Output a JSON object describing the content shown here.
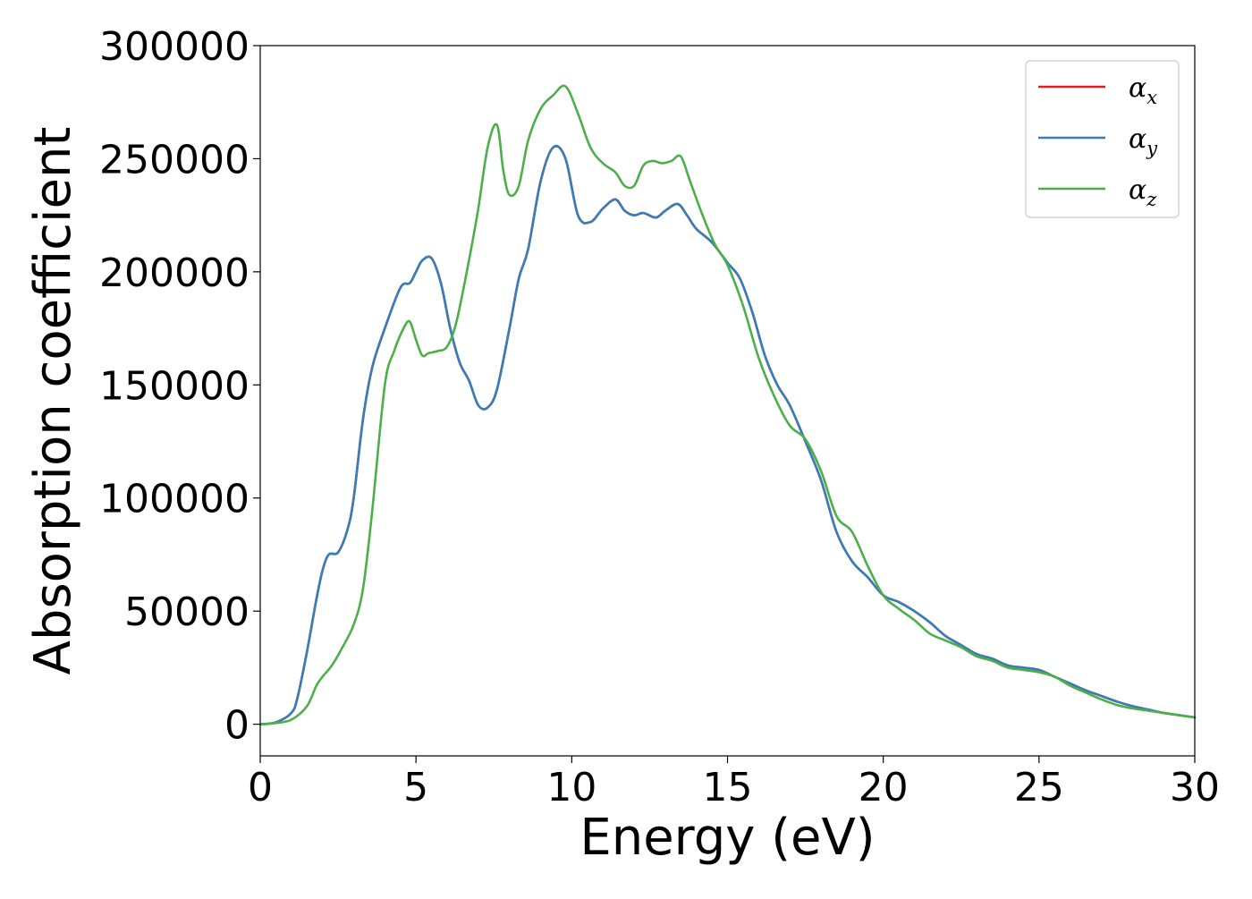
{
  "chart_data": {
    "type": "line",
    "title": "",
    "xlabel": "Energy (eV)",
    "ylabel": "Absorption coefficient",
    "xlim": [
      0,
      30
    ],
    "ylim": [
      -14000,
      300000
    ],
    "xticks": [
      0,
      5,
      10,
      15,
      20,
      25,
      30
    ],
    "yticks": [
      0,
      50000,
      100000,
      150000,
      200000,
      250000,
      300000
    ],
    "grid": false,
    "legend_position": "top-right",
    "series": [
      {
        "name": "x",
        "symbol": "α",
        "color": "#e41a1c",
        "x": [
          0,
          0.5,
          1.0,
          1.2,
          1.5,
          1.8,
          2.0,
          2.2,
          2.5,
          2.8,
          3.0,
          3.3,
          3.6,
          4.0,
          4.5,
          4.8,
          5.0,
          5.2,
          5.5,
          5.8,
          6.1,
          6.4,
          6.7,
          7.0,
          7.3,
          7.6,
          8.0,
          8.3,
          8.6,
          9.0,
          9.4,
          9.8,
          10.2,
          10.6,
          11.0,
          11.4,
          11.7,
          12.0,
          12.3,
          12.7,
          13.0,
          13.4,
          13.7,
          14.0,
          14.5,
          15.0,
          15.4,
          15.8,
          16.2,
          16.6,
          17.0,
          17.5,
          18.0,
          18.5,
          19.0,
          19.5,
          20.0,
          20.5,
          21.0,
          21.5,
          22.0,
          22.5,
          23.0,
          23.5,
          24.0,
          24.5,
          25.0,
          25.5,
          26.0,
          26.5,
          27.0,
          27.5,
          28.0,
          28.5,
          29.0,
          29.5,
          30.0
        ],
        "values": [
          0,
          800,
          5000,
          12000,
          32000,
          55000,
          68000,
          75000,
          76000,
          86000,
          100000,
          135000,
          158000,
          175000,
          193000,
          195000,
          200000,
          205000,
          206000,
          195000,
          175000,
          160000,
          152000,
          141000,
          140000,
          148000,
          175000,
          197000,
          210000,
          240000,
          255000,
          250000,
          225000,
          222000,
          228000,
          232000,
          227000,
          225000,
          226000,
          224000,
          227000,
          230000,
          225000,
          219000,
          213000,
          204000,
          197000,
          182000,
          163000,
          150000,
          141000,
          125000,
          108000,
          85000,
          72000,
          65000,
          57000,
          54000,
          50000,
          45000,
          39000,
          35000,
          31000,
          29000,
          26000,
          25000,
          24000,
          21000,
          18000,
          15000,
          12500,
          10000,
          8000,
          6500,
          5000,
          4000,
          3000
        ]
      },
      {
        "name": "y",
        "symbol": "α",
        "color": "#377eb8",
        "x": [
          0,
          0.5,
          1.0,
          1.2,
          1.5,
          1.8,
          2.0,
          2.2,
          2.5,
          2.8,
          3.0,
          3.3,
          3.6,
          4.0,
          4.5,
          4.8,
          5.0,
          5.2,
          5.5,
          5.8,
          6.1,
          6.4,
          6.7,
          7.0,
          7.3,
          7.6,
          8.0,
          8.3,
          8.6,
          9.0,
          9.4,
          9.8,
          10.2,
          10.6,
          11.0,
          11.4,
          11.7,
          12.0,
          12.3,
          12.7,
          13.0,
          13.4,
          13.7,
          14.0,
          14.5,
          15.0,
          15.4,
          15.8,
          16.2,
          16.6,
          17.0,
          17.5,
          18.0,
          18.5,
          19.0,
          19.5,
          20.0,
          20.5,
          21.0,
          21.5,
          22.0,
          22.5,
          23.0,
          23.5,
          24.0,
          24.5,
          25.0,
          25.5,
          26.0,
          26.5,
          27.0,
          27.5,
          28.0,
          28.5,
          29.0,
          29.5,
          30.0
        ],
        "values": [
          0,
          800,
          5000,
          12000,
          32000,
          55000,
          68000,
          75000,
          76000,
          86000,
          100000,
          135000,
          158000,
          175000,
          193000,
          195000,
          200000,
          205000,
          206000,
          195000,
          175000,
          160000,
          152000,
          141000,
          140000,
          148000,
          175000,
          197000,
          210000,
          240000,
          255000,
          250000,
          225000,
          222000,
          228000,
          232000,
          227000,
          225000,
          226000,
          224000,
          227000,
          230000,
          225000,
          219000,
          213000,
          204000,
          197000,
          182000,
          163000,
          150000,
          141000,
          125000,
          108000,
          85000,
          72000,
          65000,
          57000,
          54000,
          50000,
          45000,
          39000,
          35000,
          31000,
          29000,
          26000,
          25000,
          24000,
          21000,
          18000,
          15000,
          12500,
          10000,
          8000,
          6500,
          5000,
          4000,
          3000
        ]
      },
      {
        "name": "z",
        "symbol": "α",
        "color": "#4daf4a",
        "x": [
          0,
          0.5,
          1.0,
          1.5,
          1.8,
          2.0,
          2.3,
          2.6,
          3.0,
          3.3,
          3.6,
          4.0,
          4.3,
          4.6,
          4.8,
          5.0,
          5.2,
          5.4,
          5.7,
          6.0,
          6.3,
          6.7,
          7.0,
          7.3,
          7.6,
          7.8,
          8.0,
          8.3,
          8.6,
          9.0,
          9.4,
          9.8,
          10.2,
          10.6,
          11.0,
          11.4,
          11.7,
          12.0,
          12.3,
          12.6,
          12.9,
          13.2,
          13.5,
          13.8,
          14.2,
          14.6,
          15.0,
          15.5,
          16.0,
          16.5,
          17.0,
          17.5,
          18.0,
          18.5,
          19.0,
          19.5,
          20.0,
          20.5,
          21.0,
          21.5,
          22.0,
          22.5,
          23.0,
          23.5,
          24.0,
          24.5,
          25.0,
          25.5,
          26.0,
          26.5,
          27.0,
          27.5,
          28.0,
          28.5,
          29.0,
          29.5,
          30.0
        ],
        "values": [
          0,
          500,
          2000,
          8000,
          17000,
          21000,
          26000,
          33000,
          44000,
          60000,
          95000,
          150000,
          165000,
          175000,
          178000,
          170000,
          163000,
          164000,
          165000,
          167000,
          178000,
          205000,
          228000,
          255000,
          265000,
          245000,
          234000,
          238000,
          258000,
          272000,
          278000,
          282000,
          270000,
          255000,
          248000,
          244000,
          238000,
          238000,
          247000,
          249000,
          248000,
          249000,
          251000,
          240000,
          225000,
          212000,
          203000,
          185000,
          162000,
          145000,
          132000,
          126000,
          112000,
          92000,
          85000,
          70000,
          57000,
          51000,
          46000,
          40000,
          37000,
          34000,
          30000,
          28000,
          25000,
          24000,
          23000,
          21000,
          17000,
          14000,
          11000,
          8500,
          7000,
          6000,
          5000,
          4000,
          3000
        ]
      }
    ]
  }
}
